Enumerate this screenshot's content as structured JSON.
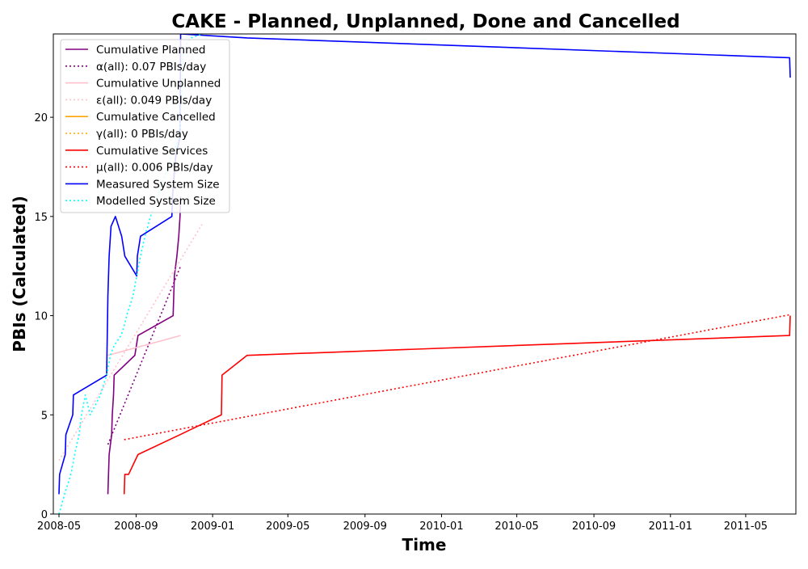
{
  "chart_data": {
    "type": "line",
    "title": "CAKE - Planned, Unplanned, Done  and Cancelled",
    "xlabel": "Time",
    "ylabel": "PBIs (Calculated)",
    "x_axis": "date",
    "xlim": [
      "2008-04-22",
      "2011-07-20"
    ],
    "ylim": [
      0,
      24.2
    ],
    "x_ticks": [
      "2008-05",
      "2008-09",
      "2009-01",
      "2009-05",
      "2009-09",
      "2010-01",
      "2010-05",
      "2010-09",
      "2011-01",
      "2011-05"
    ],
    "y_ticks": [
      0,
      5,
      10,
      15,
      20
    ],
    "grid": false,
    "legend_position": "top-left",
    "series": [
      {
        "name": "Cumulative Planned",
        "color": "#800080",
        "style": "solid",
        "x": [
          "2008-07-18",
          "2008-07-19",
          "2008-07-20",
          "2008-07-24",
          "2008-07-25",
          "2008-07-27",
          "2008-07-28",
          "2008-08-30",
          "2008-09-04",
          "2008-10-30",
          "2008-10-31",
          "2008-11-01",
          "2008-11-05",
          "2008-11-08",
          "2008-11-10",
          "2008-11-11"
        ],
        "y": [
          1,
          2,
          3,
          4,
          5,
          6,
          7,
          8,
          9,
          10,
          11,
          12,
          13,
          14,
          15,
          16
        ]
      },
      {
        "name": "α(all): 0.07 PBIs/day",
        "color": "#800080",
        "style": "dotted",
        "x": [
          "2008-07-18",
          "2008-11-11"
        ],
        "y": [
          3.5,
          12.5
        ]
      },
      {
        "name": "Cumulative Unplanned",
        "color": "#ffc0cb",
        "style": "solid",
        "x": [
          "2008-07-18",
          "2008-11-11"
        ],
        "y": [
          8,
          9
        ]
      },
      {
        "name": "ε(all): 0.049 PBIs/day",
        "color": "#ffc0cb",
        "style": "dotted",
        "x": [
          "2008-05-01",
          "2008-12-15"
        ],
        "y": [
          2.7,
          14.6
        ]
      },
      {
        "name": "Cumulative Cancelled",
        "color": "#ffa500",
        "style": "solid",
        "x": [],
        "y": []
      },
      {
        "name": "γ(all): 0 PBIs/day",
        "color": "#ffa500",
        "style": "dotted",
        "x": [],
        "y": []
      },
      {
        "name": "Cumulative Services",
        "color": "#ff0000",
        "style": "solid",
        "x": [
          "2008-08-13",
          "2008-08-14",
          "2008-08-20",
          "2008-09-04",
          "2008-11-10",
          "2009-01-15",
          "2009-01-16",
          "2009-02-25",
          "2011-07-10",
          "2011-07-11"
        ],
        "y": [
          1,
          2,
          2,
          3,
          4,
          5,
          7,
          8,
          9,
          10
        ]
      },
      {
        "name": "μ(all): 0.006 PBIs/day",
        "color": "#ff0000",
        "style": "dotted",
        "x": [
          "2008-08-13",
          "2011-07-11"
        ],
        "y": [
          3.75,
          10.05
        ]
      },
      {
        "name": "Measured System Size",
        "color": "#0000ff",
        "style": "solid",
        "x": [
          "2008-05-01",
          "2008-05-02",
          "2008-05-11",
          "2008-05-12",
          "2008-05-23",
          "2008-05-24",
          "2008-07-16",
          "2008-07-17",
          "2008-07-18",
          "2008-07-19",
          "2008-07-20",
          "2008-07-22",
          "2008-07-23",
          "2008-07-30",
          "2008-08-09",
          "2008-08-14",
          "2008-09-02",
          "2008-09-03",
          "2008-09-08",
          "2008-10-28",
          "2008-10-29",
          "2008-11-03",
          "2008-11-10",
          "2008-11-11",
          "2009-02-25",
          "2011-07-10",
          "2011-07-11"
        ],
        "y": [
          1,
          2,
          3,
          4,
          5,
          6,
          7,
          9,
          11,
          12,
          13,
          14,
          14.5,
          15,
          14,
          13,
          12,
          13,
          14,
          15,
          16,
          18,
          19,
          24.2,
          24,
          23,
          22
        ]
      },
      {
        "name": "Modelled System Size",
        "color": "#00ffff",
        "style": "dotted",
        "x": [
          "2008-05-01",
          "2008-05-10",
          "2008-05-20",
          "2008-05-26",
          "2008-06-02",
          "2008-06-06",
          "2008-06-12",
          "2008-06-20",
          "2008-07-06",
          "2008-07-16",
          "2008-07-22",
          "2008-07-28",
          "2008-08-08",
          "2008-08-13",
          "2008-08-17",
          "2008-08-27",
          "2008-09-02",
          "2008-09-08",
          "2008-09-15",
          "2008-09-24",
          "2008-10-05",
          "2008-10-16",
          "2008-10-27",
          "2008-11-09",
          "2008-11-16",
          "2008-11-28",
          "2008-12-15"
        ],
        "y": [
          0,
          1,
          2,
          3,
          4,
          5,
          6,
          5,
          6,
          7,
          8,
          8.5,
          9,
          9.5,
          10,
          11,
          12,
          13,
          14,
          15,
          16,
          17,
          18,
          19,
          23.5,
          24,
          24.2
        ]
      }
    ]
  }
}
